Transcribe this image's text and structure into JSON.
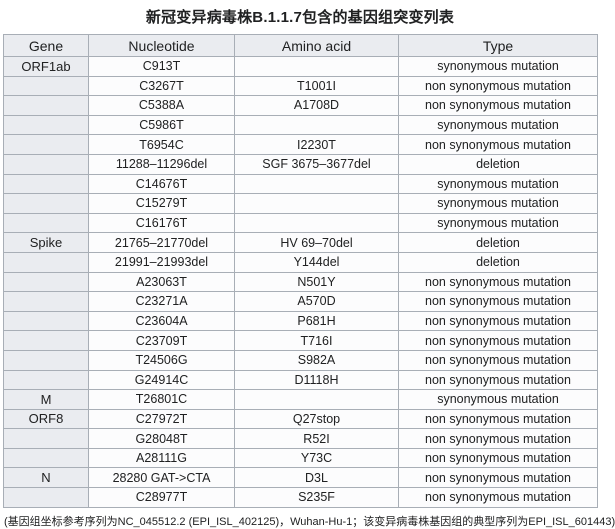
{
  "title": "新冠变异病毒株B.1.1.7包含的基因组突变列表",
  "table": {
    "headers": [
      "Gene",
      "Nucleotide",
      "Amino acid",
      "Type"
    ],
    "rows": [
      {
        "gene": "ORF1ab",
        "nucleotide": "C913T",
        "amino_acid": "",
        "type": "synonymous mutation"
      },
      {
        "gene": "",
        "nucleotide": "C3267T",
        "amino_acid": "T1001I",
        "type": "non synonymous mutation"
      },
      {
        "gene": "",
        "nucleotide": "C5388A",
        "amino_acid": "A1708D",
        "type": "non synonymous mutation"
      },
      {
        "gene": "",
        "nucleotide": "C5986T",
        "amino_acid": "",
        "type": "synonymous mutation"
      },
      {
        "gene": "",
        "nucleotide": "T6954C",
        "amino_acid": "I2230T",
        "type": "non synonymous mutation"
      },
      {
        "gene": "",
        "nucleotide": "11288–11296del",
        "amino_acid": "SGF 3675–3677del",
        "type": "deletion"
      },
      {
        "gene": "",
        "nucleotide": "C14676T",
        "amino_acid": "",
        "type": "synonymous mutation"
      },
      {
        "gene": "",
        "nucleotide": "C15279T",
        "amino_acid": "",
        "type": "synonymous mutation"
      },
      {
        "gene": "",
        "nucleotide": "C16176T",
        "amino_acid": "",
        "type": "synonymous mutation"
      },
      {
        "gene": "Spike",
        "nucleotide": "21765–21770del",
        "amino_acid": "HV 69–70del",
        "type": "deletion"
      },
      {
        "gene": "",
        "nucleotide": "21991–21993del",
        "amino_acid": "Y144del",
        "type": "deletion"
      },
      {
        "gene": "",
        "nucleotide": "A23063T",
        "amino_acid": "N501Y",
        "type": "non synonymous mutation"
      },
      {
        "gene": "",
        "nucleotide": "C23271A",
        "amino_acid": "A570D",
        "type": "non synonymous mutation"
      },
      {
        "gene": "",
        "nucleotide": "C23604A",
        "amino_acid": "P681H",
        "type": "non synonymous mutation"
      },
      {
        "gene": "",
        "nucleotide": "C23709T",
        "amino_acid": "T716I",
        "type": "non synonymous mutation"
      },
      {
        "gene": "",
        "nucleotide": "T24506G",
        "amino_acid": "S982A",
        "type": "non synonymous mutation"
      },
      {
        "gene": "",
        "nucleotide": "G24914C",
        "amino_acid": "D1118H",
        "type": "non synonymous mutation"
      },
      {
        "gene": "M",
        "nucleotide": "T26801C",
        "amino_acid": "",
        "type": "synonymous mutation"
      },
      {
        "gene": "ORF8",
        "nucleotide": "C27972T",
        "amino_acid": "Q27stop",
        "type": "non synonymous mutation"
      },
      {
        "gene": "",
        "nucleotide": "G28048T",
        "amino_acid": "R52I",
        "type": "non synonymous mutation"
      },
      {
        "gene": "",
        "nucleotide": "A28111G",
        "amino_acid": "Y73C",
        "type": "non synonymous mutation"
      },
      {
        "gene": "N",
        "nucleotide": "28280 GAT->CTA",
        "amino_acid": "D3L",
        "type": "non synonymous mutation"
      },
      {
        "gene": "",
        "nucleotide": "C28977T",
        "amino_acid": "S235F",
        "type": "non synonymous mutation"
      }
    ]
  },
  "footnote": "(基因组坐标参考序列为NC_045512.2 (EPI_ISL_402125)，Wuhan-Hu-1；该变异病毒株基因组的典型序列为EPI_ISL_601443)",
  "colors": {
    "header_bg": "#eaecf0",
    "gene_column_bg": "#eaecf0",
    "data_cell_bg": "#fcfcfd",
    "border": "#a8aeb6",
    "text": "#202122"
  }
}
